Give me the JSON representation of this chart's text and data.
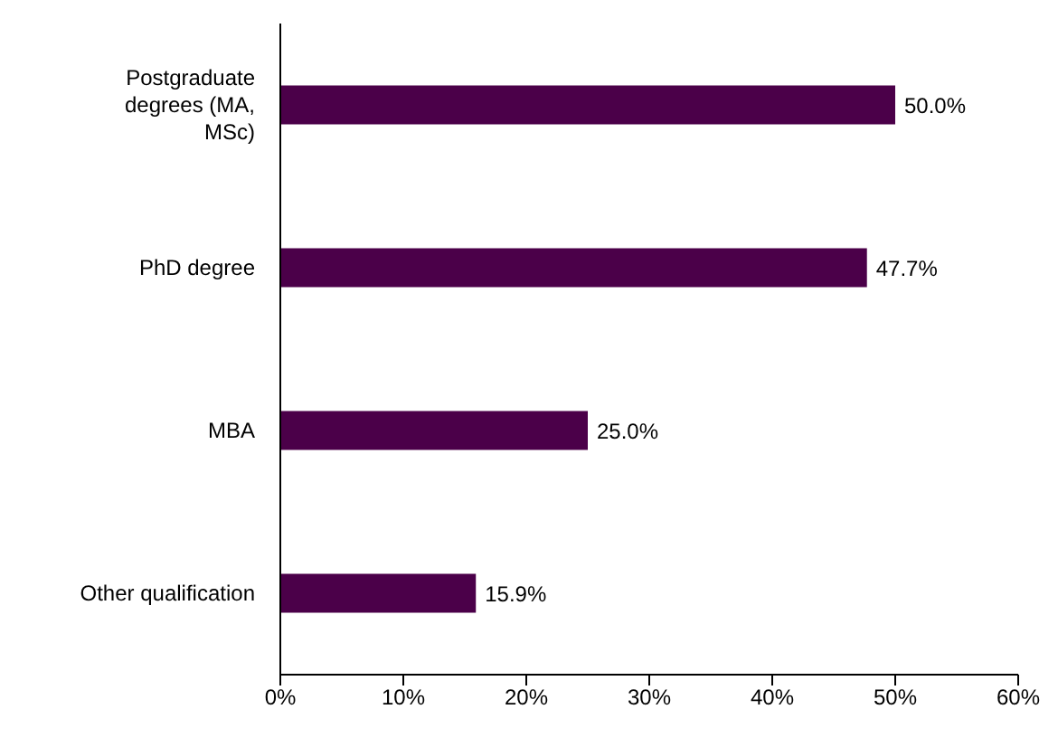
{
  "chart_data": {
    "type": "bar",
    "orientation": "horizontal",
    "categories": [
      "Postgraduate degrees (MA, MSc)",
      "PhD degree",
      "MBA",
      "Other qualification"
    ],
    "values": [
      50.0,
      47.7,
      25.0,
      15.9
    ],
    "color": "#4b0049",
    "value_labels": [
      "50.0%",
      "47.7%",
      "25.0%",
      "15.9%"
    ],
    "xlim": [
      0,
      60
    ],
    "xticks": [
      {
        "value": 0,
        "label": "0%"
      },
      {
        "value": 10,
        "label": "10%"
      },
      {
        "value": 20,
        "label": "20%"
      },
      {
        "value": 30,
        "label": "30%"
      },
      {
        "value": 40,
        "label": "40%"
      },
      {
        "value": 50,
        "label": "50%"
      },
      {
        "value": 60,
        "label": "60%"
      }
    ],
    "grid": false,
    "legend": false
  }
}
